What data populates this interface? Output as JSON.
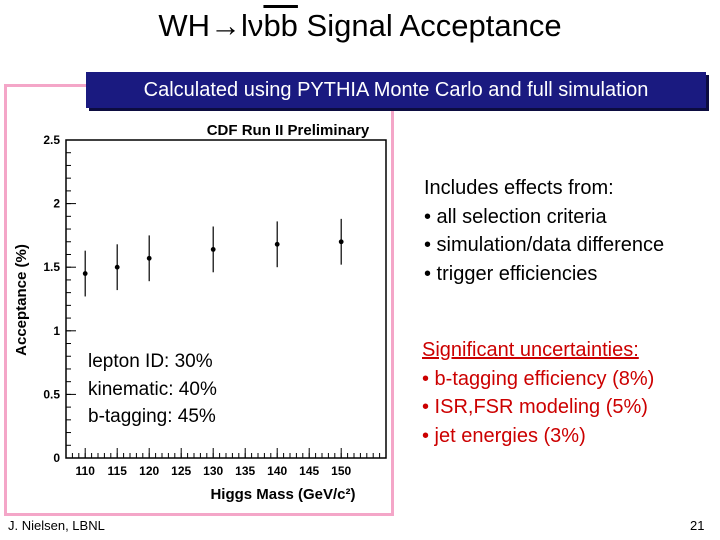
{
  "slide": {
    "title_prefix": "WH→lν",
    "title_overline": "bb",
    "title_suffix": " Signal Acceptance",
    "banner": "Calculated using PYTHIA Monte Carlo and full simulation",
    "effects_header": "Includes effects from:",
    "effects_items": [
      "• all selection criteria",
      "• simulation/data difference",
      "• trigger efficiencies"
    ],
    "uncertainties_header": "Significant uncertainties:",
    "uncertainties_items": [
      "• b-tagging efficiency (8%)",
      "• ISR,FSR modeling (5%)",
      "• jet energies (3%)"
    ],
    "efficiency_items": [
      "lepton ID: 30%",
      "kinematic: 40%",
      "b-tagging: 45%"
    ],
    "footer_author": "J. Nielsen, LBNL",
    "page_number": "21"
  },
  "colors": {
    "banner_bg": "#1a1a80",
    "banner_text": "#ffffff",
    "frame": "#f4a6c8",
    "uncertainty_text": "#cc0000"
  },
  "chart_data": {
    "type": "scatter",
    "title": "CDF Run II Preliminary",
    "xlabel": "Higgs Mass (GeV/c²)",
    "ylabel": "Acceptance (%)",
    "xlim": [
      107,
      157
    ],
    "ylim": [
      0,
      2.5
    ],
    "x_ticks": [
      110,
      115,
      120,
      125,
      130,
      135,
      140,
      145,
      150
    ],
    "y_ticks": [
      0,
      0.5,
      1,
      1.5,
      2,
      2.5
    ],
    "y_tick_labels": [
      "0",
      "0.5",
      "1",
      "1.5",
      "2",
      "2.5"
    ],
    "grid": false,
    "series": [
      {
        "x": [
          110,
          115,
          120,
          130,
          140,
          150
        ],
        "y": [
          1.45,
          1.5,
          1.57,
          1.64,
          1.68,
          1.7
        ],
        "yerr": [
          0.18,
          0.18,
          0.18,
          0.18,
          0.18,
          0.18
        ]
      }
    ]
  }
}
